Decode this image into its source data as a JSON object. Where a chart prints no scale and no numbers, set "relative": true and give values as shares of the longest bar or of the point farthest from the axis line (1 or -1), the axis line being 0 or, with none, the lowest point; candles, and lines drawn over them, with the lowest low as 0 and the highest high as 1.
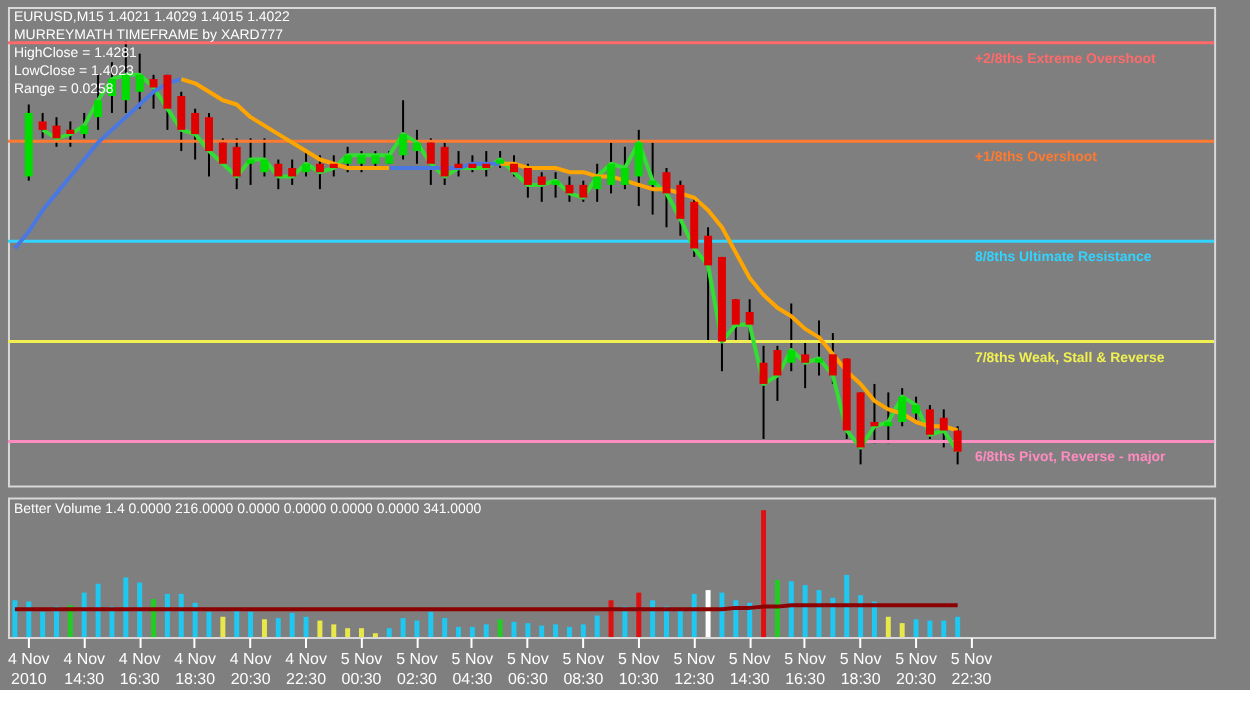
{
  "chart_data": [
    {
      "type": "candlestick",
      "title": "EURUSD,M15 1.4021 1.4029 1.4015 1.4022",
      "relative": true,
      "tick_labels": false,
      "annotations": [
        "MURREYMATH TIMEFRAME by XARD777",
        "HighClose = 1.4281",
        "LowClose = 1.4023",
        "Range = 0.0258"
      ],
      "categories": [
        null,
        null,
        null,
        null,
        null,
        null,
        null,
        null,
        null,
        null,
        null,
        null,
        null,
        null,
        null,
        null,
        null,
        null,
        null,
        null,
        null,
        null,
        null,
        null,
        null,
        null,
        null,
        null,
        null,
        null,
        null,
        null,
        null,
        null,
        null,
        null,
        null,
        null,
        null,
        null,
        null,
        null,
        null,
        null,
        null,
        null,
        null,
        null,
        null,
        null,
        null,
        null,
        null,
        null,
        null,
        null,
        null,
        null,
        null,
        null,
        null,
        null,
        null,
        null,
        null,
        null,
        null,
        null,
        null,
        null,
        null,
        null,
        null,
        null,
        null,
        null,
        null,
        null,
        null,
        null,
        null,
        null,
        null,
        null,
        null,
        null,
        null
      ],
      "ohlc": [
        null,
        [
          0.68,
          0.85,
          0.67,
          0.83
        ],
        [
          0.81,
          0.83,
          0.77,
          0.79
        ],
        [
          0.8,
          0.82,
          0.75,
          0.77
        ],
        [
          0.79,
          0.81,
          0.75,
          0.78
        ],
        [
          0.78,
          0.83,
          0.77,
          0.8
        ],
        [
          0.82,
          0.92,
          0.79,
          0.86
        ],
        [
          0.87,
          0.95,
          0.83,
          0.91
        ],
        [
          0.86,
          1.0,
          0.83,
          0.92
        ],
        [
          0.88,
          0.97,
          0.84,
          0.92
        ],
        [
          0.91,
          0.92,
          0.84,
          0.89
        ],
        [
          0.92,
          0.92,
          0.79,
          0.84
        ],
        [
          0.87,
          0.88,
          0.74,
          0.79
        ],
        [
          0.83,
          0.84,
          0.72,
          0.78
        ],
        [
          0.82,
          0.83,
          0.68,
          0.74
        ],
        [
          0.76,
          0.77,
          0.71,
          0.71
        ],
        [
          0.75,
          0.77,
          0.65,
          0.68
        ],
        [
          0.71,
          0.77,
          0.66,
          0.72
        ],
        [
          0.69,
          0.77,
          0.68,
          0.72
        ],
        [
          0.71,
          0.72,
          0.65,
          0.68
        ],
        [
          0.7,
          0.72,
          0.66,
          0.68
        ],
        [
          0.69,
          0.74,
          0.68,
          0.71
        ],
        [
          0.71,
          0.73,
          0.65,
          0.69
        ],
        [
          0.71,
          0.73,
          0.68,
          0.7
        ],
        [
          0.71,
          0.75,
          0.69,
          0.73
        ],
        [
          0.71,
          0.74,
          0.69,
          0.73
        ],
        [
          0.71,
          0.74,
          0.7,
          0.73
        ],
        [
          0.71,
          0.74,
          0.71,
          0.73
        ],
        [
          0.73,
          0.86,
          0.72,
          0.78
        ],
        [
          0.74,
          0.79,
          0.71,
          0.76
        ],
        [
          0.76,
          0.77,
          0.66,
          0.71
        ],
        [
          0.75,
          0.76,
          0.66,
          0.68
        ],
        [
          0.71,
          0.74,
          0.68,
          0.7
        ],
        [
          0.71,
          0.73,
          0.69,
          0.7
        ],
        [
          0.71,
          0.74,
          0.68,
          0.7
        ],
        [
          0.71,
          0.74,
          0.7,
          0.72
        ],
        [
          0.71,
          0.73,
          0.68,
          0.69
        ],
        [
          0.7,
          0.71,
          0.63,
          0.66
        ],
        [
          0.68,
          0.69,
          0.62,
          0.66
        ],
        [
          0.66,
          0.69,
          0.63,
          0.67
        ],
        [
          0.66,
          0.68,
          0.62,
          0.64
        ],
        [
          0.66,
          0.67,
          0.62,
          0.63
        ],
        [
          0.65,
          0.71,
          0.62,
          0.68
        ],
        [
          0.66,
          0.76,
          0.64,
          0.71
        ],
        [
          0.66,
          0.75,
          0.65,
          0.7
        ],
        [
          0.68,
          0.79,
          0.61,
          0.76
        ],
        [
          0.66,
          0.76,
          0.59,
          0.67
        ],
        [
          0.69,
          0.7,
          0.56,
          0.64
        ],
        [
          0.66,
          0.67,
          0.54,
          0.58
        ],
        [
          0.62,
          0.63,
          0.49,
          0.51
        ],
        [
          0.54,
          0.56,
          0.29,
          0.47
        ],
        [
          0.49,
          0.49,
          0.22,
          0.29
        ],
        [
          0.39,
          0.39,
          0.29,
          0.33
        ],
        [
          0.36,
          0.39,
          0.29,
          0.33
        ],
        [
          0.24,
          0.28,
          0.06,
          0.19
        ],
        [
          0.27,
          0.28,
          0.15,
          0.21
        ],
        [
          0.24,
          0.38,
          0.22,
          0.27
        ],
        [
          0.26,
          0.29,
          0.18,
          0.24
        ],
        [
          0.24,
          0.34,
          0.21,
          0.25
        ],
        [
          0.26,
          0.31,
          0.19,
          0.21
        ],
        [
          0.25,
          0.25,
          0.06,
          0.08
        ],
        [
          0.17,
          0.17,
          0.0,
          0.04
        ],
        [
          0.1,
          0.19,
          0.05,
          0.09
        ],
        [
          0.09,
          0.17,
          0.05,
          0.1
        ],
        [
          0.1,
          0.18,
          0.09,
          0.16
        ],
        [
          0.12,
          0.16,
          0.1,
          0.14
        ],
        [
          0.13,
          0.14,
          0.06,
          0.07
        ],
        [
          0.11,
          0.13,
          0.04,
          0.08
        ],
        [
          0.08,
          0.09,
          0.0,
          0.03
        ],
        null,
        null,
        null,
        null,
        null,
        null,
        null,
        null,
        null,
        null,
        null,
        null,
        null,
        null,
        null,
        null,
        null,
        null
      ],
      "colors": [
        null,
        "#00dd00",
        "#e00000",
        "#e00000",
        "#e00000",
        "#00dd00",
        "#00dd00",
        "#00dd00",
        "#00dd00",
        "#00dd00",
        "#e00000",
        "#e00000",
        "#e00000",
        "#e00000",
        "#e00000",
        "#e00000",
        "#e00000",
        "#00dd00",
        "#00dd00",
        "#e00000",
        "#e00000",
        "#00dd00",
        "#e00000",
        "#e00000",
        "#00dd00",
        "#00dd00",
        "#00dd00",
        "#00dd00",
        "#00dd00",
        "#00dd00",
        "#e00000",
        "#e00000",
        "#e00000",
        "#e00000",
        "#e00000",
        "#00dd00",
        "#e00000",
        "#e00000",
        "#e00000",
        "#00dd00",
        "#e00000",
        "#e00000",
        "#00dd00",
        "#00dd00",
        "#00dd00",
        "#00dd00",
        "#00dd00",
        "#e00000",
        "#e00000",
        "#e00000",
        "#e00000",
        "#e00000",
        "#e00000",
        "#e00000",
        "#e00000",
        "#e00000",
        "#00dd00",
        "#e00000",
        "#00dd00",
        "#e00000",
        "#e00000",
        "#e00000",
        "#e00000",
        "#00dd00",
        "#00dd00",
        "#00dd00",
        "#e00000",
        "#e00000",
        "#e00000",
        null,
        null,
        null,
        null,
        null,
        null,
        null,
        null,
        null,
        null,
        null,
        null,
        null,
        null,
        null,
        null,
        null,
        null
      ],
      "ref_lines": [
        {
          "axis": "y",
          "value": 0.996,
          "label": "+2/8ths Extreme Overshoot",
          "color": "#ff6a6a"
        },
        {
          "axis": "y",
          "value": 0.763,
          "label": "+1/8ths Overshoot",
          "color": "#ff7a30"
        },
        {
          "axis": "y",
          "value": 0.527,
          "label": "8/8ths Ultimate Resistance",
          "color": "#30d4ff"
        },
        {
          "axis": "y",
          "value": 0.29,
          "label": "7/8ths Weak, Stall & Reverse",
          "color": "#f0f050"
        },
        {
          "axis": "y",
          "value": 0.054,
          "label": "6/8ths Pivot, Reverse - major",
          "color": "#ff8cc0"
        }
      ],
      "series": [
        {
          "type": "line",
          "color": "#33dd33",
          "values": [
            null,
            null,
            0.79,
            0.77,
            0.78,
            0.8,
            0.86,
            0.91,
            0.92,
            0.92,
            0.89,
            0.84,
            0.79,
            0.78,
            0.74,
            0.71,
            0.68,
            0.72,
            0.72,
            0.68,
            0.68,
            0.71,
            0.69,
            0.7,
            0.73,
            0.73,
            0.73,
            0.73,
            0.78,
            0.76,
            0.71,
            0.68,
            0.7,
            0.7,
            0.7,
            0.72,
            0.69,
            0.66,
            0.66,
            0.67,
            0.64,
            0.63,
            0.68,
            0.71,
            0.7,
            0.76,
            0.67,
            0.64,
            0.58,
            0.51,
            0.47,
            0.29,
            0.33,
            0.33,
            0.19,
            0.21,
            0.27,
            0.24,
            0.25,
            0.21,
            0.08,
            0.04,
            0.09,
            0.1,
            0.16,
            0.14,
            0.07,
            0.08,
            0.03,
            null,
            null,
            null,
            null,
            null,
            null,
            null,
            null,
            null,
            null,
            null,
            null,
            null,
            null,
            null,
            null,
            null,
            null
          ]
        },
        {
          "type": "line",
          "color": "#4a78e0",
          "values": [
            0.51,
            0.55,
            0.6,
            0.64,
            0.68,
            0.72,
            0.76,
            0.79,
            0.82,
            0.85,
            0.88,
            0.9,
            0.91,
            null,
            null,
            null,
            null,
            null,
            null,
            null,
            null,
            null,
            null,
            null,
            null,
            null,
            null,
            null,
            null,
            null,
            null,
            null,
            null,
            null,
            null,
            null,
            null,
            null,
            null,
            null,
            null,
            null,
            null,
            null,
            null,
            null,
            null,
            null,
            null,
            null,
            null,
            null,
            null,
            null,
            null,
            null,
            null,
            null,
            null,
            null,
            null,
            null,
            null,
            null,
            null,
            null,
            null,
            null,
            null,
            null,
            null,
            null,
            null,
            null,
            null,
            null,
            null,
            null,
            null,
            null,
            null,
            null,
            null,
            null,
            null,
            null,
            null
          ]
        },
        {
          "type": "line",
          "color": "#ffa500",
          "values": [
            null,
            null,
            null,
            null,
            null,
            null,
            null,
            null,
            null,
            null,
            null,
            null,
            0.91,
            0.9,
            0.88,
            0.86,
            0.85,
            0.82,
            0.8,
            0.78,
            0.76,
            0.74,
            0.72,
            0.71,
            0.7,
            0.7,
            0.7,
            0.7,
            null,
            null,
            null,
            null,
            null,
            null,
            null,
            null,
            null,
            null,
            null,
            null,
            null,
            null,
            null,
            null,
            null,
            null,
            null,
            null,
            null,
            null,
            null,
            null,
            null,
            null,
            null,
            null,
            null,
            null,
            null,
            null,
            null,
            null,
            null,
            null,
            null,
            null,
            null,
            null,
            null,
            null,
            null,
            null,
            null,
            null,
            null,
            null,
            null,
            null,
            null,
            null,
            null,
            null,
            null,
            null,
            null,
            null,
            null
          ]
        },
        {
          "type": "line",
          "color": "#4a78e0",
          "values": [
            null,
            null,
            null,
            null,
            null,
            null,
            null,
            null,
            null,
            null,
            null,
            null,
            null,
            null,
            null,
            null,
            null,
            null,
            null,
            null,
            null,
            null,
            null,
            null,
            null,
            null,
            null,
            0.7,
            0.7,
            0.7,
            0.7,
            0.7,
            0.7,
            0.71,
            0.71,
            0.71,
            null,
            null,
            null,
            null,
            null,
            null,
            null,
            null,
            null,
            null,
            null,
            null,
            null,
            null,
            null,
            null,
            null,
            null,
            null,
            null,
            null,
            null,
            null,
            null,
            null,
            null,
            null,
            null,
            null,
            null,
            null,
            null,
            null,
            null,
            null,
            null,
            null,
            null,
            null,
            null,
            null,
            null,
            null,
            null,
            null,
            null,
            null,
            null,
            null,
            null,
            null
          ]
        },
        {
          "type": "line",
          "color": "#ffa500",
          "values": [
            null,
            null,
            null,
            null,
            null,
            null,
            null,
            null,
            null,
            null,
            null,
            null,
            null,
            null,
            null,
            null,
            null,
            null,
            null,
            null,
            null,
            null,
            null,
            null,
            null,
            null,
            null,
            null,
            null,
            null,
            null,
            null,
            null,
            null,
            null,
            0.71,
            0.71,
            0.7,
            0.7,
            0.7,
            0.69,
            0.69,
            0.68,
            0.68,
            0.67,
            0.66,
            0.65,
            0.65,
            0.64,
            0.63,
            0.6,
            0.56,
            0.5,
            0.44,
            0.4,
            0.37,
            0.35,
            0.32,
            0.3,
            0.26,
            0.22,
            0.19,
            0.15,
            0.13,
            0.12,
            0.1,
            0.09,
            0.09,
            0.08,
            null,
            null,
            null,
            null,
            null,
            null,
            null,
            null,
            null,
            null,
            null,
            null,
            null,
            null,
            null,
            null,
            null,
            null
          ]
        }
      ]
    },
    {
      "type": "bar",
      "relative": true,
      "tick_labels": "x",
      "annotations": [
        "Better Volume 1.4 0.0000 216.0000 0.0000 0.0000 0.0000 0.0000 341.0000"
      ],
      "categories": [
        null,
        "4 Nov 2010",
        null,
        null,
        null,
        "4 Nov 14:30",
        null,
        null,
        null,
        "4 Nov 16:30",
        null,
        null,
        null,
        "4 Nov 18:30",
        null,
        null,
        null,
        "4 Nov 20:30",
        null,
        null,
        null,
        "4 Nov 22:30",
        null,
        null,
        null,
        "5 Nov 00:30",
        null,
        null,
        null,
        "5 Nov 02:30",
        null,
        null,
        null,
        "5 Nov 04:30",
        null,
        null,
        null,
        "5 Nov 06:30",
        null,
        null,
        null,
        "5 Nov 08:30",
        null,
        null,
        null,
        "5 Nov 10:30",
        null,
        null,
        null,
        "5 Nov 12:30",
        null,
        null,
        null,
        "5 Nov 14:30",
        null,
        null,
        null,
        "5 Nov 16:30",
        null,
        null,
        null,
        "5 Nov 18:30",
        null,
        null,
        null,
        "5 Nov 20:30",
        null,
        null,
        null,
        "5 Nov 22:30",
        null,
        null,
        null,
        null,
        null,
        null,
        null,
        null,
        null,
        null,
        null,
        null,
        null,
        null,
        null,
        null,
        null
      ],
      "values": [
        0.29,
        0.28,
        0.2,
        0.24,
        0.25,
        0.35,
        0.42,
        0.24,
        0.47,
        0.43,
        0.3,
        0.34,
        0.34,
        0.27,
        0.2,
        0.16,
        0.22,
        0.2,
        0.14,
        0.15,
        0.19,
        0.16,
        0.13,
        0.1,
        0.07,
        0.07,
        0.03,
        0.07,
        0.15,
        0.13,
        0.2,
        0.15,
        0.08,
        0.08,
        0.1,
        0.14,
        0.12,
        0.11,
        0.09,
        0.1,
        0.08,
        0.1,
        0.17,
        0.29,
        0.24,
        0.35,
        0.29,
        0.24,
        0.22,
        0.34,
        0.37,
        0.35,
        0.29,
        0.27,
        1.0,
        0.45,
        0.44,
        0.41,
        0.37,
        0.31,
        0.49,
        0.33,
        0.28,
        0.16,
        0.11,
        0.14,
        0.13,
        0.13,
        0.16,
        null,
        null,
        null,
        null,
        null,
        null,
        null,
        null,
        null,
        null,
        null,
        null,
        null,
        null,
        null,
        null,
        null,
        null
      ],
      "colors": [
        "#1ec8f0",
        "#1ec8f0",
        "#1ec8f0",
        "#1ec8f0",
        "#22cc22",
        "#1ec8f0",
        "#1ec8f0",
        "#1ec8f0",
        "#1ec8f0",
        "#1ec8f0",
        "#22cc22",
        "#1ec8f0",
        "#1ec8f0",
        "#1ec8f0",
        "#1ec8f0",
        "#e8e84a",
        "#1ec8f0",
        "#1ec8f0",
        "#e8e84a",
        "#1ec8f0",
        "#1ec8f0",
        "#1ec8f0",
        "#e8e84a",
        "#e8e84a",
        "#e8e84a",
        "#e8e84a",
        "#e8e84a",
        "#1ec8f0",
        "#1ec8f0",
        "#1ec8f0",
        "#1ec8f0",
        "#1ec8f0",
        "#1ec8f0",
        "#1ec8f0",
        "#1ec8f0",
        "#22cc22",
        "#1ec8f0",
        "#1ec8f0",
        "#1ec8f0",
        "#1ec8f0",
        "#1ec8f0",
        "#1ec8f0",
        "#1ec8f0",
        "#e01010",
        "#1ec8f0",
        "#e01010",
        "#1ec8f0",
        "#1ec8f0",
        "#1ec8f0",
        "#1ec8f0",
        "#ffffff",
        "#1ec8f0",
        "#1ec8f0",
        "#1ec8f0",
        "#e01010",
        "#22cc22",
        "#1ec8f0",
        "#1ec8f0",
        "#1ec8f0",
        "#1ec8f0",
        "#1ec8f0",
        "#1ec8f0",
        "#1ec8f0",
        "#e8e84a",
        "#e8e84a",
        "#1ec8f0",
        "#1ec8f0",
        "#1ec8f0",
        "#1ec8f0",
        null,
        null,
        null,
        null,
        null,
        null,
        null,
        null,
        null,
        null,
        null,
        null,
        null,
        null,
        null,
        null,
        null,
        null
      ],
      "series": [
        {
          "type": "line",
          "color": "#8b0000",
          "values": [
            0.22,
            0.22,
            0.22,
            0.22,
            0.22,
            0.22,
            0.22,
            0.22,
            0.22,
            0.22,
            0.22,
            0.22,
            0.22,
            0.22,
            0.22,
            0.22,
            0.22,
            0.22,
            0.22,
            0.22,
            0.22,
            0.22,
            0.22,
            0.22,
            0.22,
            0.22,
            0.22,
            0.22,
            0.22,
            0.22,
            0.22,
            0.22,
            0.22,
            0.22,
            0.22,
            0.22,
            0.22,
            0.22,
            0.22,
            0.22,
            0.22,
            0.22,
            0.22,
            0.22,
            0.22,
            0.22,
            0.22,
            0.22,
            0.22,
            0.22,
            0.22,
            0.22,
            0.23,
            0.23,
            0.24,
            0.24,
            0.25,
            0.25,
            0.25,
            0.25,
            0.25,
            0.25,
            0.25,
            0.25,
            0.25,
            0.25,
            0.25,
            0.25,
            0.25,
            null,
            null,
            null,
            null,
            null,
            null,
            null,
            null,
            null,
            null,
            null,
            null,
            null,
            null,
            null,
            null,
            null,
            null
          ]
        }
      ]
    }
  ]
}
